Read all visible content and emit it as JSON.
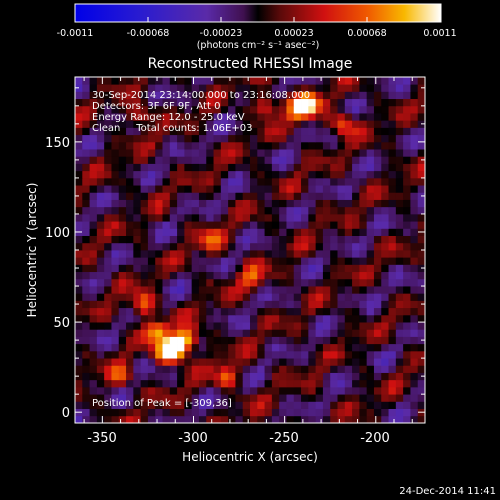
{
  "colorbar": {
    "ticks": [
      "-0.0011",
      "-0.00068",
      "-0.00023",
      "0.00023",
      "0.00068",
      "0.0011"
    ],
    "unit_label": "(photons cm⁻² s⁻¹ asec⁻²)"
  },
  "chart_data": {
    "type": "heatmap",
    "title": "Reconstructed RHESSI Image",
    "xlabel": "Heliocentric X (arcsec)",
    "ylabel": "Heliocentric Y (arcsec)",
    "xlim": [
      -365,
      -173
    ],
    "ylim": [
      -6,
      186
    ],
    "x_ticks": [
      "-350",
      "-300",
      "-250",
      "-200"
    ],
    "x_tick_values": [
      -350,
      -300,
      -250,
      -200
    ],
    "y_ticks": [
      "0",
      "50",
      "100",
      "150"
    ],
    "y_tick_values": [
      0,
      50,
      100,
      150
    ],
    "colorbar_range": [
      -0.0011,
      0.0011
    ],
    "grid": false,
    "info_lines": [
      "30-Sep-2014 23:14:00.000 to 23:16:08.000",
      "Detectors: 3F 6F 9F, Att 0",
      "Energy Range: 12.0 - 25.0 keV",
      "Clean     Total counts: 1.06E+03"
    ],
    "peak_label": "Position of Peak = [-309,36]",
    "peak": [
      -309,
      36
    ],
    "bright_sources": [
      {
        "x": -309,
        "y": 36,
        "value": 0.0011
      },
      {
        "x": -315,
        "y": 33,
        "value": 0.0009
      },
      {
        "x": -303,
        "y": 41,
        "value": 0.00085
      },
      {
        "x": -320,
        "y": 45,
        "value": 0.0008
      },
      {
        "x": -328,
        "y": 60,
        "value": 0.00075
      },
      {
        "x": -242,
        "y": 168,
        "value": 0.00095
      },
      {
        "x": -236,
        "y": 172,
        "value": 0.0008
      },
      {
        "x": -260,
        "y": 170,
        "value": 0.0007
      },
      {
        "x": -218,
        "y": 160,
        "value": 0.0007
      },
      {
        "x": -330,
        "y": 164,
        "value": 0.0006
      },
      {
        "x": -282,
        "y": 20,
        "value": 0.00065
      },
      {
        "x": -290,
        "y": 95,
        "value": 0.0006
      },
      {
        "x": -268,
        "y": 75,
        "value": 0.0006
      },
      {
        "x": -340,
        "y": 20,
        "value": 0.0005
      }
    ]
  },
  "footer": {
    "timestamp": "24-Dec-2014 11:41"
  }
}
